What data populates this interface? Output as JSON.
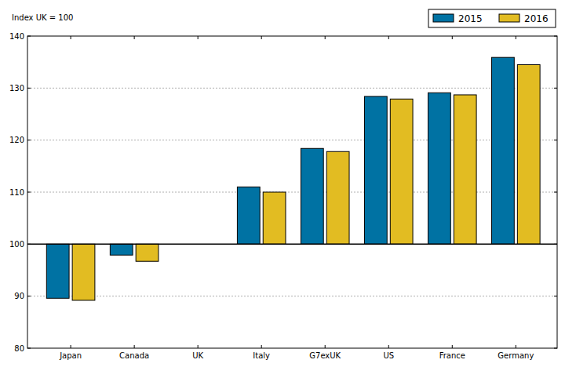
{
  "chart_data": {
    "type": "bar",
    "subtitle": "Index UK = 100",
    "categories": [
      "Japan",
      "Canada",
      "UK",
      "Italy",
      "G7exUK",
      "US",
      "France",
      "Germany"
    ],
    "series": [
      {
        "name": "2015",
        "color": "#0072a3",
        "values": [
          89.6,
          97.9,
          100,
          111,
          118.4,
          128.4,
          129.1,
          135.9
        ]
      },
      {
        "name": "2016",
        "color": "#e2bc22",
        "values": [
          89.2,
          96.7,
          100,
          110,
          117.8,
          127.9,
          128.7,
          134.5
        ]
      }
    ],
    "baseline": 100,
    "ylim": [
      80,
      140
    ],
    "yticks": [
      80,
      90,
      100,
      110,
      120,
      130,
      140
    ],
    "grid": true,
    "legend": "upper right"
  }
}
